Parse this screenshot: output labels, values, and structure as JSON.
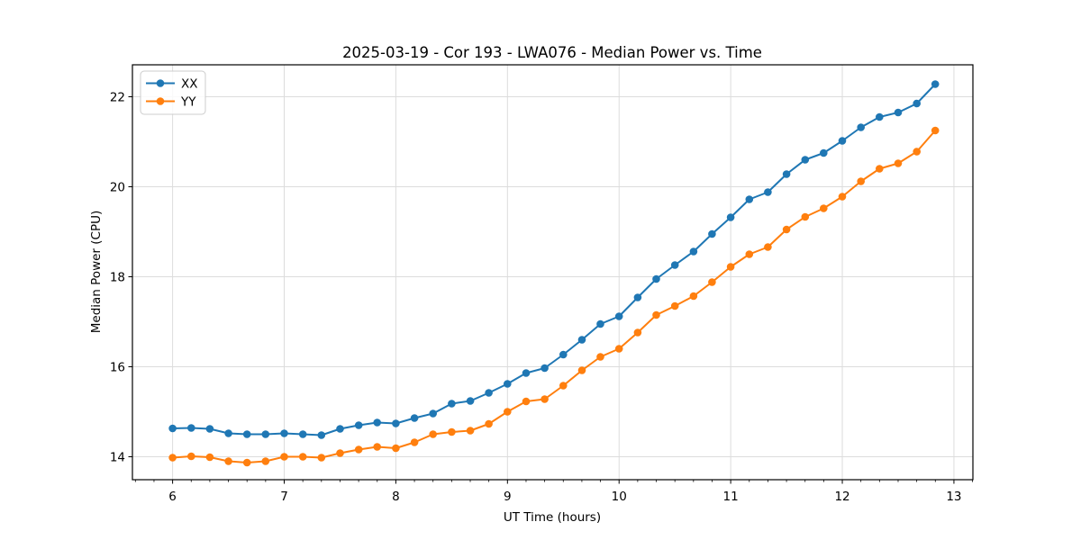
{
  "chart_data": {
    "type": "line",
    "title": "2025-03-19 - Cor 193 - LWA076 - Median Power vs. Time",
    "xlabel": "UT Time (hours)",
    "ylabel": "Median Power (CPU)",
    "xlim": [
      5.64,
      13.17
    ],
    "ylim": [
      13.49,
      22.71
    ],
    "xticks": [
      6,
      7,
      8,
      9,
      10,
      11,
      12,
      13
    ],
    "yticks": [
      14,
      16,
      18,
      20,
      22
    ],
    "x_minor_step": 0.1666667,
    "grid": true,
    "grid_color": "#dcdcdc",
    "legend_position": "upper left",
    "x": [
      6.0,
      6.167,
      6.333,
      6.5,
      6.667,
      6.833,
      7.0,
      7.167,
      7.333,
      7.5,
      7.667,
      7.833,
      8.0,
      8.167,
      8.333,
      8.5,
      8.667,
      8.833,
      9.0,
      9.167,
      9.333,
      9.5,
      9.667,
      9.833,
      10.0,
      10.167,
      10.333,
      10.5,
      10.667,
      10.833,
      11.0,
      11.167,
      11.333,
      11.5,
      11.667,
      11.833,
      12.0,
      12.167,
      12.333,
      12.5,
      12.667,
      12.833
    ],
    "series": [
      {
        "name": "XX",
        "color": "#1f77b4",
        "values": [
          14.63,
          14.64,
          14.62,
          14.52,
          14.5,
          14.5,
          14.52,
          14.5,
          14.48,
          14.62,
          14.7,
          14.76,
          14.74,
          14.86,
          14.96,
          15.18,
          15.24,
          15.42,
          15.62,
          15.86,
          15.97,
          16.27,
          16.6,
          16.95,
          17.12,
          17.54,
          17.95,
          18.26,
          18.56,
          18.95,
          19.32,
          19.72,
          19.88,
          20.28,
          20.6,
          20.75,
          21.02,
          21.32,
          21.55,
          21.65,
          21.85,
          22.28
        ]
      },
      {
        "name": "YY",
        "color": "#ff7f0e",
        "values": [
          13.98,
          14.01,
          13.99,
          13.9,
          13.87,
          13.9,
          14.0,
          14.0,
          13.98,
          14.08,
          14.16,
          14.22,
          14.19,
          14.32,
          14.5,
          14.55,
          14.58,
          14.73,
          15.0,
          15.23,
          15.28,
          15.58,
          15.92,
          16.22,
          16.4,
          16.76,
          17.15,
          17.35,
          17.57,
          17.88,
          18.22,
          18.5,
          18.66,
          19.05,
          19.33,
          19.52,
          19.78,
          20.12,
          20.4,
          20.52,
          20.78,
          21.25
        ]
      }
    ]
  }
}
